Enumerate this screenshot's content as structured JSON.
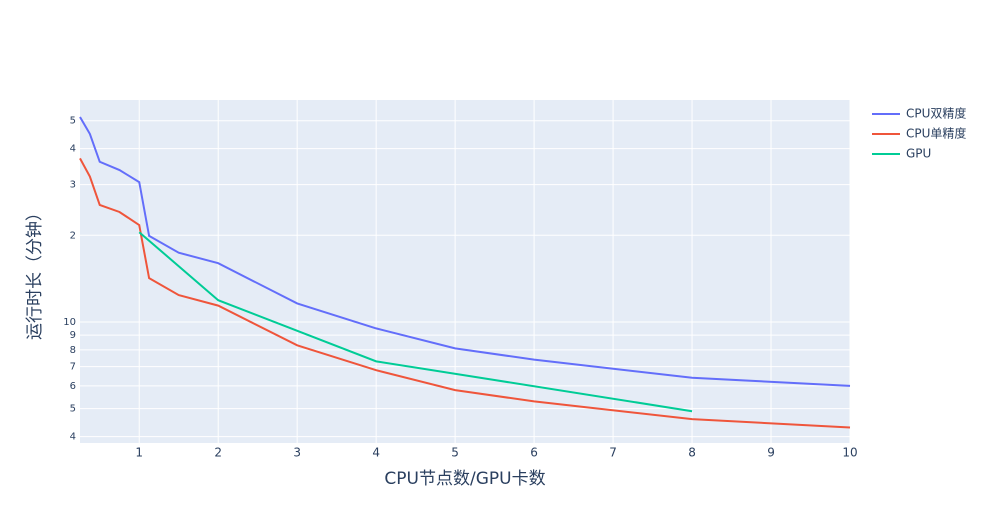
{
  "chart_data": {
    "type": "line",
    "x_label": "CPU节点数/GPU卡数",
    "y_label": "运行时长（分钟）",
    "log_y": true,
    "grid": true,
    "legend": "right",
    "xlim": [
      0.25,
      10
    ],
    "ylim": [
      3.8,
      59
    ],
    "xticks": [
      1,
      2,
      3,
      4,
      5,
      6,
      7,
      8,
      9,
      10
    ],
    "yticks": [
      4,
      5,
      6,
      7,
      8,
      9,
      10,
      {
        "value": 20,
        "label": "2"
      },
      {
        "value": 30,
        "label": "3"
      },
      {
        "value": 40,
        "label": "4"
      },
      {
        "value": 50,
        "label": "5"
      }
    ],
    "series": [
      {
        "name": "CPU双精度",
        "color": "#636efa",
        "x": [
          0.25,
          0.375,
          0.5,
          0.75,
          1,
          1.125,
          1.5,
          2,
          3,
          4,
          5,
          6,
          8,
          10
        ],
        "values": [
          51.5,
          45,
          36,
          33.7,
          30.6,
          19.9,
          17.4,
          16,
          11.6,
          9.5,
          8.1,
          7.4,
          6.4,
          6.0
        ]
      },
      {
        "name": "CPU单精度",
        "color": "#EF553B",
        "x": [
          0.25,
          0.375,
          0.5,
          0.75,
          1,
          1.125,
          1.5,
          2,
          3,
          4,
          5,
          6,
          8,
          10
        ],
        "values": [
          37,
          32,
          25.5,
          24.1,
          21.7,
          14.2,
          12.4,
          11.4,
          8.3,
          6.8,
          5.8,
          5.3,
          4.6,
          4.3
        ]
      },
      {
        "name": "GPU",
        "color": "#00cc96",
        "x": [
          1,
          2,
          4,
          8
        ],
        "values": [
          20.5,
          11.9,
          7.3,
          4.9
        ]
      }
    ]
  }
}
